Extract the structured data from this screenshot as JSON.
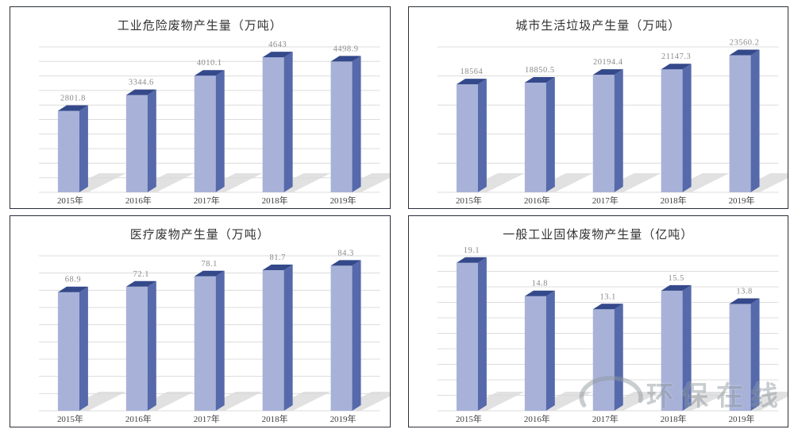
{
  "watermark": {
    "text": "环保在线"
  },
  "colors": {
    "bar_front": "#a8b2d8",
    "bar_side": "#5569ab",
    "bar_top": "#34498a",
    "shadow": "#d9d9d9",
    "grid": "#dcdcdc",
    "value_label": "#8a8a8a",
    "tick_label": "#3f3f3f",
    "title": "#333333",
    "panel_border": "#2b2f3a"
  },
  "chart_data": [
    {
      "type": "bar",
      "title": "工业危险废物产生量（万吨）",
      "categories": [
        "2015年",
        "2016年",
        "2017年",
        "2018年",
        "2019年"
      ],
      "values": [
        2801.8,
        3344.6,
        4010.1,
        4643,
        4498.9
      ],
      "labels": [
        "2801.8",
        "3344.6",
        "4010.1",
        "4643",
        "4498.9"
      ],
      "ylabel": "万吨",
      "ylim": [
        0,
        5000
      ],
      "ystep": 500,
      "grid": true,
      "legend": false,
      "style": "3d-column"
    },
    {
      "type": "bar",
      "title": "城市生活垃圾产生量（万吨）",
      "categories": [
        "2015年",
        "2016年",
        "2017年",
        "2018年",
        "2019年"
      ],
      "values": [
        18564,
        18850.5,
        20194.4,
        21147.3,
        23560.2
      ],
      "labels": [
        "18564",
        "18850.5",
        "20194.4",
        "21147.3",
        "23560.2"
      ],
      "ylabel": "万吨",
      "ylim": [
        0,
        25000
      ],
      "ystep": 5000,
      "grid": true,
      "legend": false,
      "style": "3d-column"
    },
    {
      "type": "bar",
      "title": "医疗废物产生量（万吨）",
      "categories": [
        "2015年",
        "2016年",
        "2017年",
        "2018年",
        "2019年"
      ],
      "values": [
        68.9,
        72.1,
        78.1,
        81.7,
        84.3
      ],
      "labels": [
        "68.9",
        "72.1",
        "78.1",
        "81.7",
        "84.3"
      ],
      "ylabel": "万吨",
      "ylim": [
        0,
        90
      ],
      "ystep": 10,
      "grid": true,
      "legend": false,
      "style": "3d-column"
    },
    {
      "type": "bar",
      "title": "一般工业固体废物产生量（亿吨）",
      "categories": [
        "2015年",
        "2016年",
        "2017年",
        "2018年",
        "2019年"
      ],
      "values": [
        19.1,
        14.8,
        13.1,
        15.5,
        13.8
      ],
      "labels": [
        "19.1",
        "14.8",
        "13.1",
        "15.5",
        "13.8"
      ],
      "ylabel": "亿吨",
      "ylim": [
        0,
        20
      ],
      "ystep": 2,
      "grid": true,
      "legend": false,
      "style": "3d-column"
    }
  ]
}
